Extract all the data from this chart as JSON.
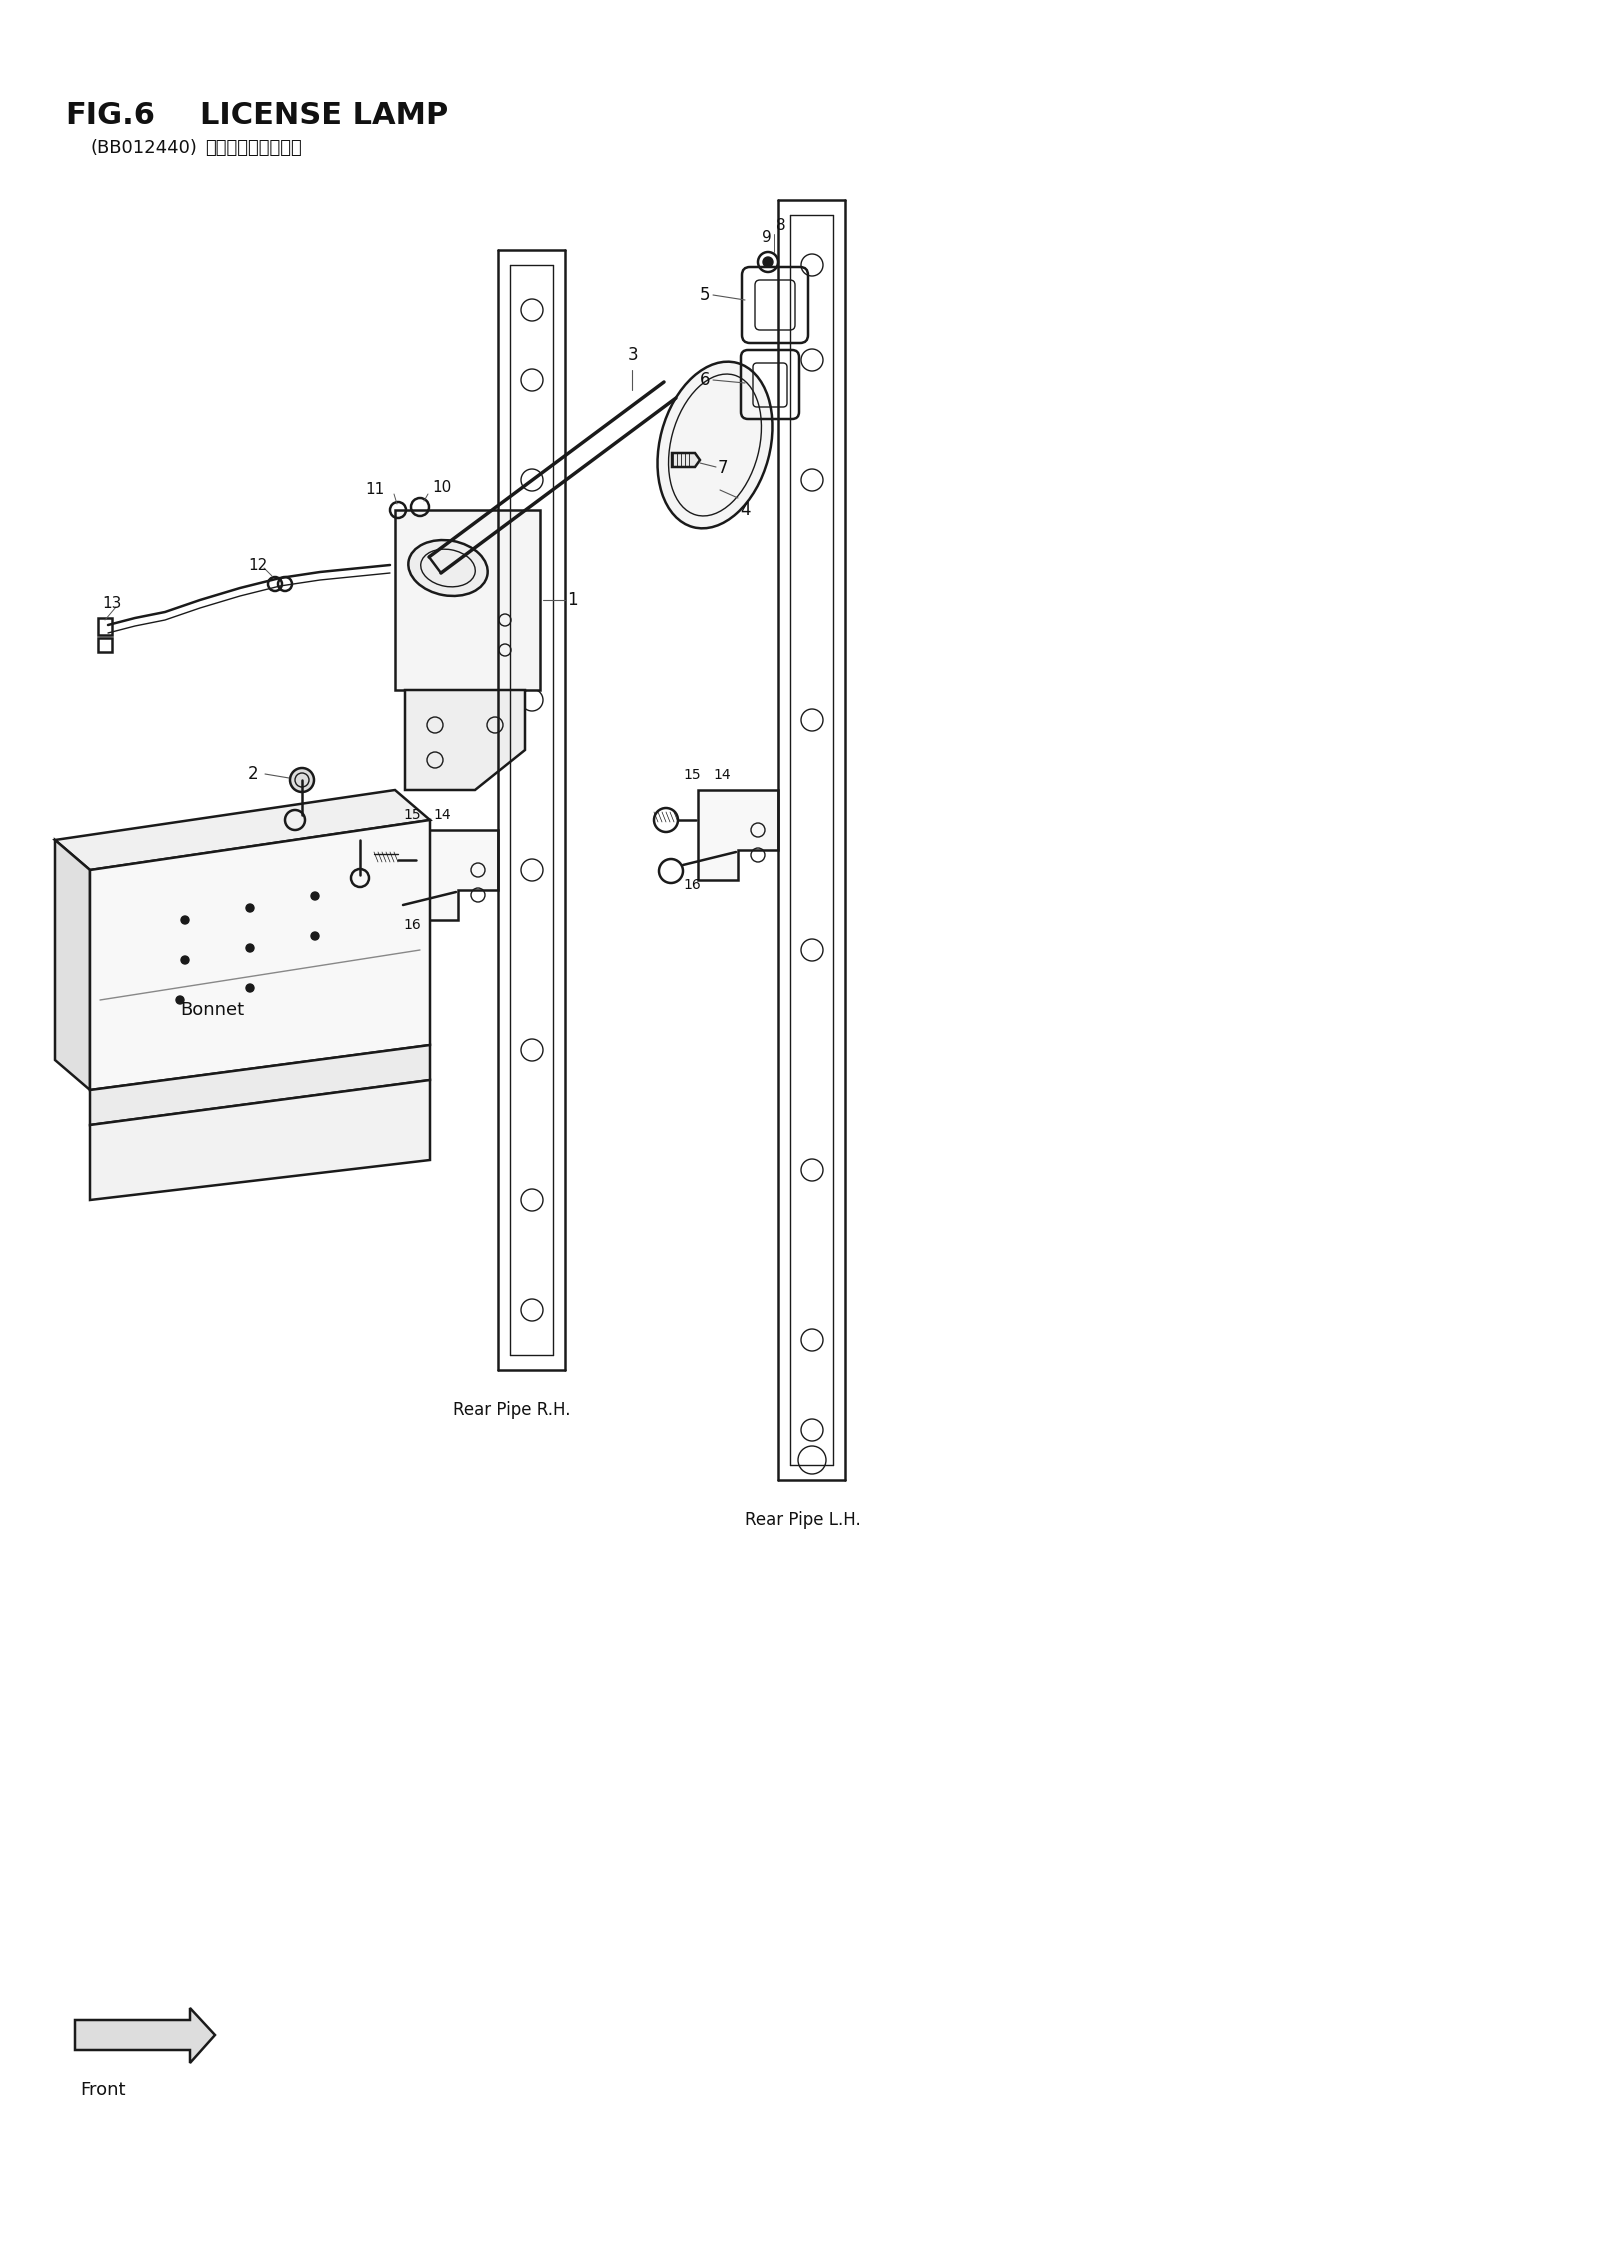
{
  "title_fig": "FIG.6",
  "title_name": "LICENSE LAMP",
  "subtitle_code": "(BB012440)",
  "subtitle_japanese": "ライセンスランプ゜",
  "bg_color": "#ffffff",
  "line_color": "#1a1a1a",
  "fig_width": 16.0,
  "fig_height": 22.59,
  "dpi": 100
}
